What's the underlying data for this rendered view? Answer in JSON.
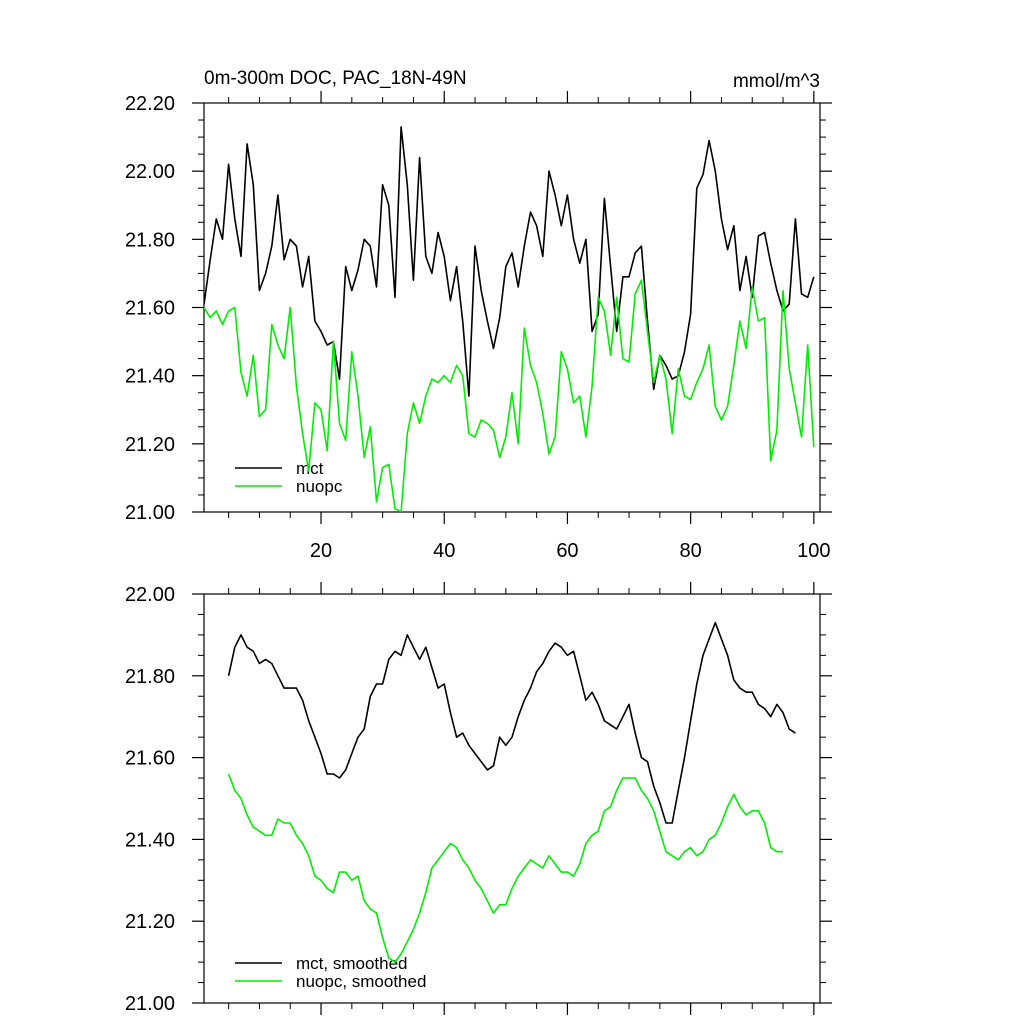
{
  "colors": {
    "mct": "#000000",
    "nuopc": "#00ee00",
    "axis": "#000000"
  },
  "chart_data": [
    {
      "type": "line",
      "title": "0m-300m DOC, PAC_18N-49N",
      "units": "mmol/m^3",
      "xlim": [
        1,
        101
      ],
      "ylim": [
        21.0,
        22.2
      ],
      "ytick_values": [
        21.0,
        21.2,
        21.4,
        21.6,
        21.8,
        22.0,
        22.2
      ],
      "ytick_labels": [
        "21.00",
        "21.20",
        "21.40",
        "21.60",
        "21.80",
        "22.00",
        "22.20"
      ],
      "xtick_values": [
        20,
        40,
        60,
        80,
        100
      ],
      "xtick_labels": [
        "20",
        "40",
        "60",
        "80",
        "100"
      ],
      "legend_position": "bottom-left",
      "series": [
        {
          "name": "mct",
          "color": "#000000",
          "x_start": 1,
          "values": [
            21.61,
            21.74,
            21.86,
            21.8,
            22.02,
            21.86,
            21.75,
            22.08,
            21.96,
            21.65,
            21.7,
            21.78,
            21.93,
            21.74,
            21.8,
            21.78,
            21.66,
            21.75,
            21.56,
            21.53,
            21.49,
            21.5,
            21.39,
            21.72,
            21.65,
            21.71,
            21.8,
            21.78,
            21.66,
            21.96,
            21.9,
            21.63,
            22.13,
            21.96,
            21.68,
            22.04,
            21.75,
            21.7,
            21.82,
            21.75,
            21.62,
            21.72,
            21.56,
            21.34,
            21.78,
            21.65,
            21.56,
            21.48,
            21.57,
            21.72,
            21.76,
            21.66,
            21.78,
            21.88,
            21.84,
            21.75,
            22.0,
            21.93,
            21.84,
            21.93,
            21.8,
            21.73,
            21.8,
            21.53,
            21.58,
            21.92,
            21.72,
            21.53,
            21.69,
            21.69,
            21.76,
            21.78,
            21.56,
            21.36,
            21.46,
            21.43,
            21.39,
            21.4,
            21.47,
            21.58,
            21.95,
            21.99,
            22.09,
            22.0,
            21.86,
            21.77,
            21.84,
            21.65,
            21.75,
            21.63,
            21.81,
            21.82,
            21.73,
            21.65,
            21.59,
            21.61,
            21.86,
            21.64,
            21.63,
            21.69
          ]
        },
        {
          "name": "nuopc",
          "color": "#00ee00",
          "x_start": 1,
          "values": [
            21.6,
            21.57,
            21.59,
            21.55,
            21.59,
            21.6,
            21.41,
            21.34,
            21.46,
            21.28,
            21.3,
            21.55,
            21.49,
            21.45,
            21.6,
            21.37,
            21.23,
            21.12,
            21.32,
            21.3,
            21.18,
            21.5,
            21.26,
            21.21,
            21.47,
            21.34,
            21.16,
            21.25,
            21.03,
            21.13,
            21.14,
            21.01,
            21.0,
            21.23,
            21.32,
            21.26,
            21.34,
            21.39,
            21.38,
            21.4,
            21.38,
            21.43,
            21.4,
            21.23,
            21.22,
            21.27,
            21.26,
            21.24,
            21.16,
            21.22,
            21.35,
            21.2,
            21.54,
            21.43,
            21.38,
            21.29,
            21.17,
            21.22,
            21.47,
            21.42,
            21.32,
            21.34,
            21.22,
            21.37,
            21.63,
            21.59,
            21.46,
            21.63,
            21.45,
            21.44,
            21.64,
            21.68,
            21.53,
            21.38,
            21.46,
            21.39,
            21.23,
            21.42,
            21.34,
            21.33,
            21.38,
            21.42,
            21.49,
            21.31,
            21.27,
            21.31,
            21.43,
            21.56,
            21.48,
            21.66,
            21.56,
            21.57,
            21.15,
            21.24,
            21.65,
            21.42,
            21.32,
            21.22,
            21.49,
            21.19
          ]
        }
      ]
    },
    {
      "type": "line",
      "xlim": [
        1,
        101
      ],
      "ylim": [
        21.0,
        22.0
      ],
      "ytick_values": [
        21.0,
        21.2,
        21.4,
        21.6,
        21.8,
        22.0
      ],
      "ytick_labels": [
        "21.00",
        "21.20",
        "21.40",
        "21.60",
        "21.80",
        "22.00"
      ],
      "xtick_values": [
        20,
        40,
        60,
        80,
        100
      ],
      "legend_position": "bottom-left",
      "series": [
        {
          "name": "mct, smoothed",
          "color": "#000000",
          "x_start": 5,
          "values": [
            21.8,
            21.87,
            21.9,
            21.87,
            21.86,
            21.83,
            21.84,
            21.83,
            21.8,
            21.77,
            21.77,
            21.77,
            21.74,
            21.69,
            21.65,
            21.61,
            21.56,
            21.56,
            21.55,
            21.57,
            21.61,
            21.65,
            21.67,
            21.75,
            21.78,
            21.78,
            21.84,
            21.86,
            21.85,
            21.9,
            21.87,
            21.84,
            21.87,
            21.82,
            21.77,
            21.78,
            21.71,
            21.65,
            21.66,
            21.63,
            21.61,
            21.59,
            21.57,
            21.58,
            21.65,
            21.63,
            21.65,
            21.7,
            21.74,
            21.77,
            21.81,
            21.83,
            21.86,
            21.88,
            21.87,
            21.85,
            21.86,
            21.8,
            21.74,
            21.76,
            21.73,
            21.69,
            21.68,
            21.67,
            21.7,
            21.73,
            21.66,
            21.6,
            21.59,
            21.53,
            21.49,
            21.44,
            21.44,
            21.52,
            21.6,
            21.69,
            21.78,
            21.85,
            21.89,
            21.93,
            21.89,
            21.85,
            21.79,
            21.77,
            21.76,
            21.76,
            21.73,
            21.72,
            21.7,
            21.73,
            21.71,
            21.67,
            21.66
          ]
        },
        {
          "name": "nuopc, smoothed",
          "color": "#00ee00",
          "x_start": 5,
          "values": [
            21.56,
            21.52,
            21.5,
            21.46,
            21.43,
            21.42,
            21.41,
            21.41,
            21.45,
            21.44,
            21.44,
            21.41,
            21.39,
            21.36,
            21.31,
            21.3,
            21.28,
            21.27,
            21.32,
            21.32,
            21.3,
            21.31,
            21.25,
            21.23,
            21.22,
            21.16,
            21.11,
            21.1,
            21.12,
            21.15,
            21.18,
            21.22,
            21.27,
            21.33,
            21.35,
            21.37,
            21.39,
            21.38,
            21.35,
            21.33,
            21.3,
            21.28,
            21.25,
            21.22,
            21.24,
            21.24,
            21.28,
            21.31,
            21.33,
            21.35,
            21.34,
            21.33,
            21.36,
            21.34,
            21.32,
            21.32,
            21.31,
            21.34,
            21.39,
            21.41,
            21.42,
            21.47,
            21.48,
            21.52,
            21.55,
            21.55,
            21.55,
            21.52,
            21.5,
            21.47,
            21.42,
            21.37,
            21.36,
            21.35,
            21.37,
            21.38,
            21.36,
            21.37,
            21.4,
            21.41,
            21.44,
            21.48,
            21.51,
            21.48,
            21.46,
            21.47,
            21.47,
            21.44,
            21.38,
            21.37,
            21.37
          ]
        }
      ]
    }
  ]
}
